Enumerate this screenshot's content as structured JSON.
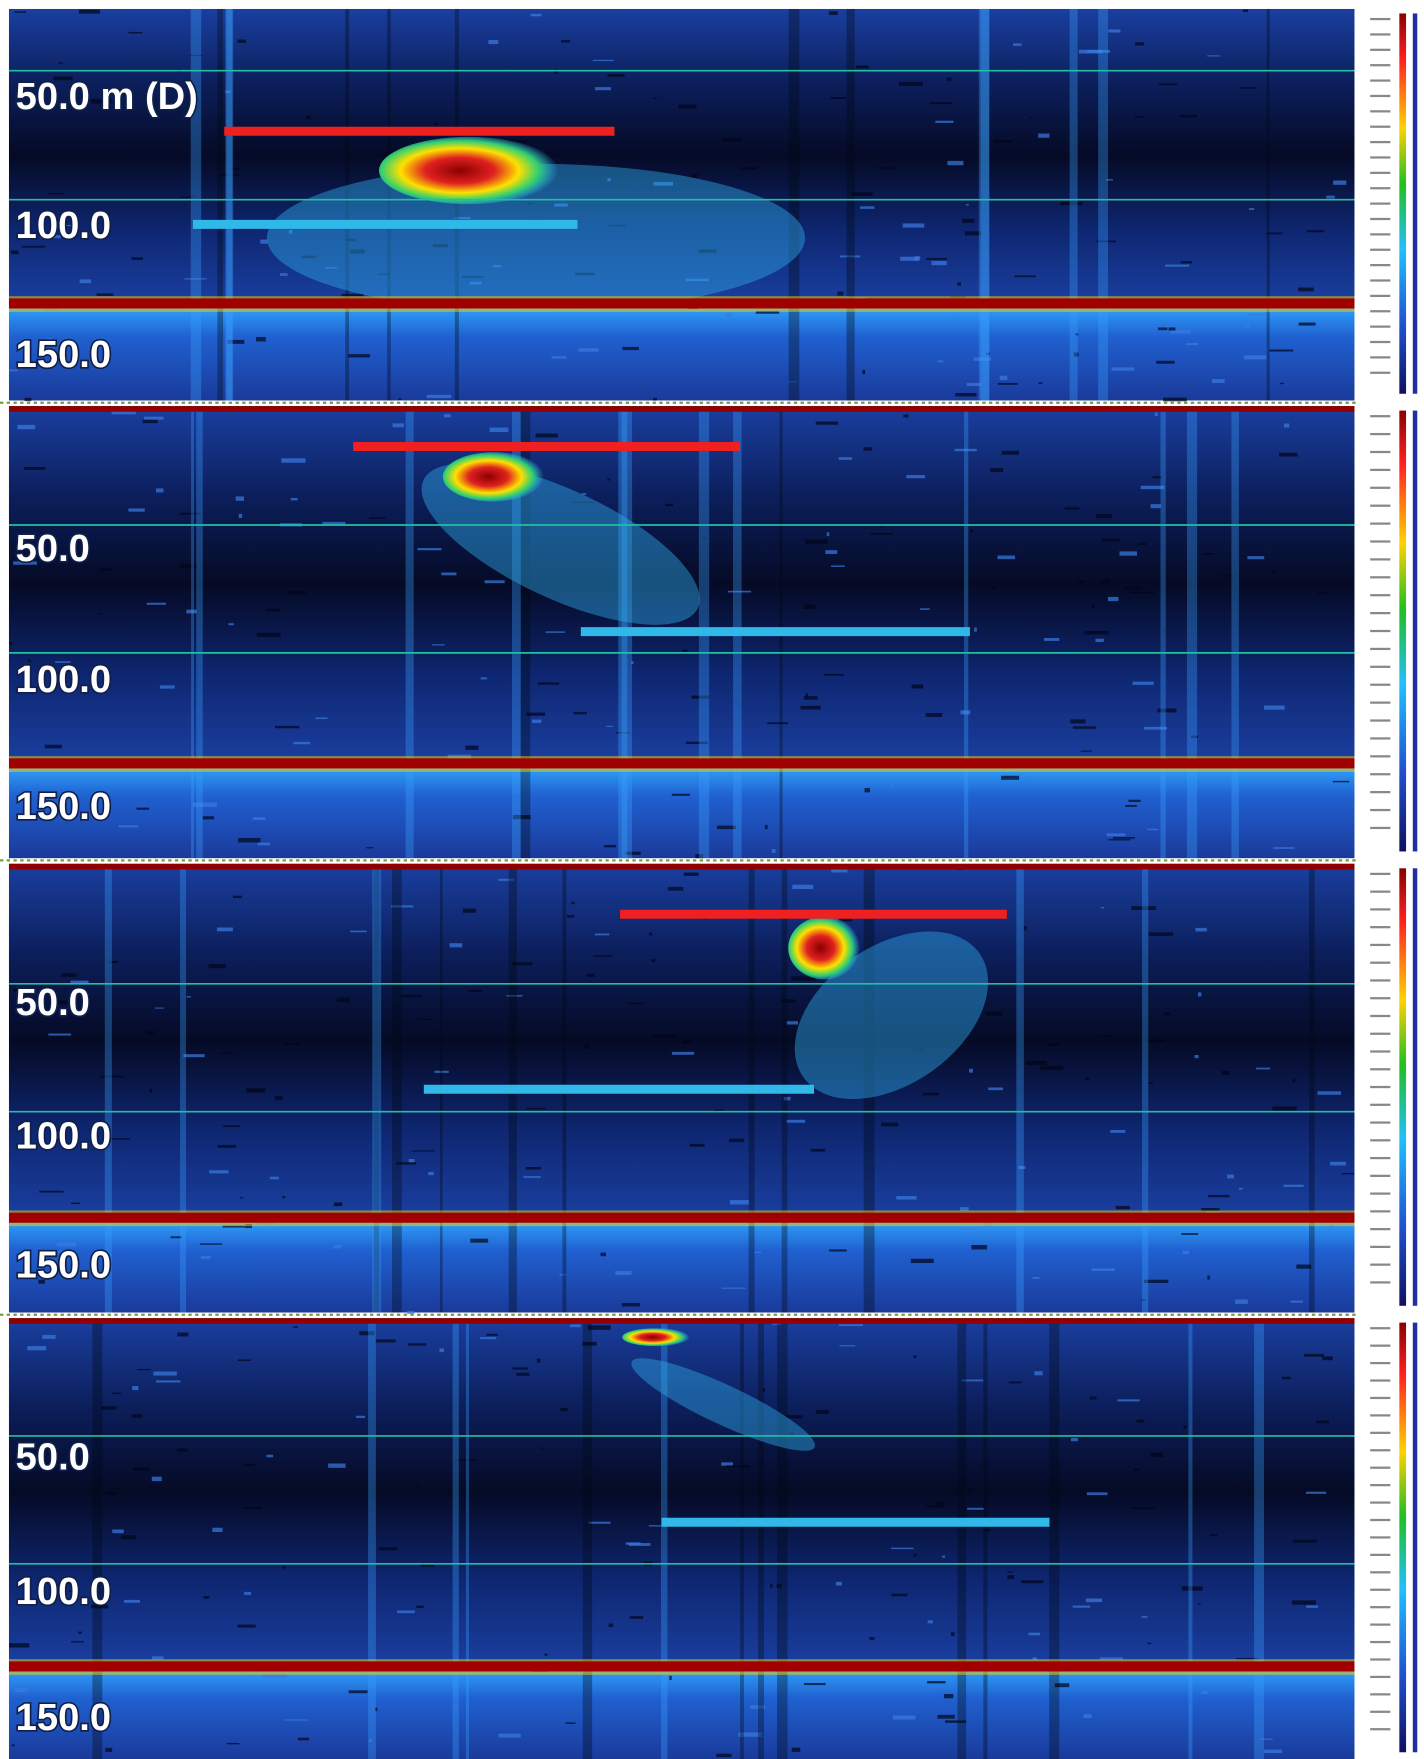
{
  "panels": [
    {
      "depth_labels": [
        "50.0 m (D)",
        "100.0",
        "150.0"
      ]
    },
    {
      "depth_labels": [
        "50.0",
        "100.0",
        "150.0"
      ]
    },
    {
      "depth_labels": [
        "50.0",
        "100.0",
        "150.0"
      ]
    },
    {
      "depth_labels": [
        "50.0",
        "100.0",
        "150.0"
      ]
    }
  ]
}
